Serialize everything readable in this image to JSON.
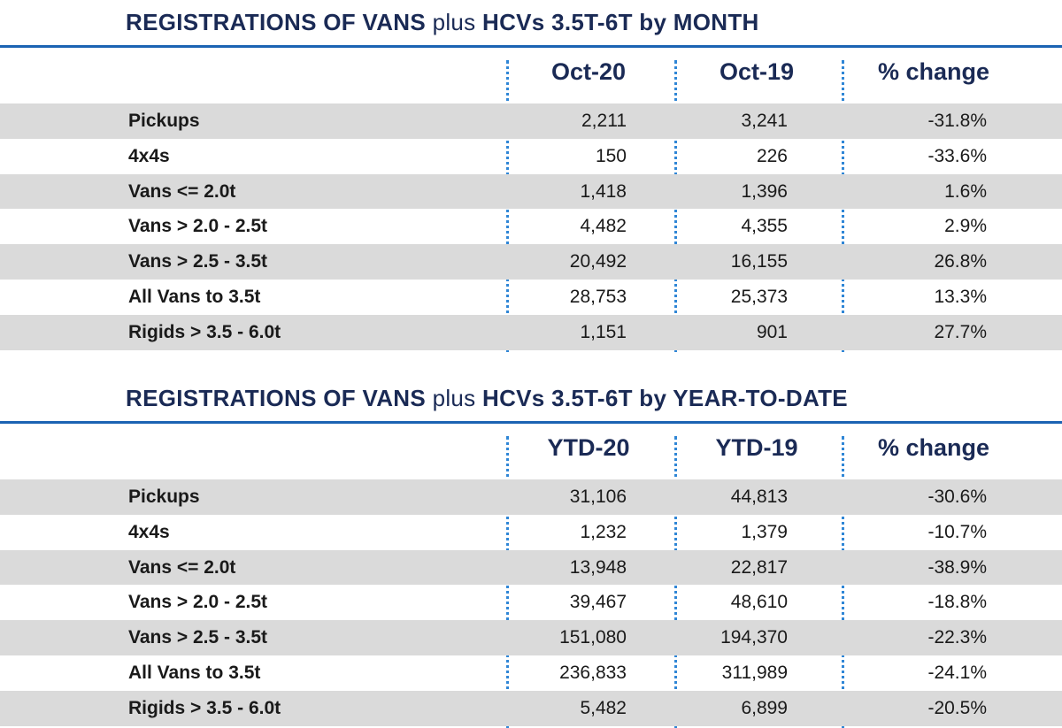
{
  "sections": [
    {
      "title_bold1": "REGISTRATIONS OF VANS",
      "title_plus": "plus",
      "title_bold2": "HCVs 3.5T-6T by MONTH",
      "columns": [
        "Oct-20",
        "Oct-19",
        "% change"
      ],
      "rows": [
        {
          "label": "Pickups",
          "c1": "2,211",
          "c2": "3,241",
          "c3": "-31.8%"
        },
        {
          "label": "4x4s",
          "c1": "150",
          "c2": "226",
          "c3": "-33.6%"
        },
        {
          "label": "Vans <= 2.0t",
          "c1": "1,418",
          "c2": "1,396",
          "c3": "1.6%"
        },
        {
          "label": "Vans > 2.0 - 2.5t",
          "c1": "4,482",
          "c2": "4,355",
          "c3": "2.9%"
        },
        {
          "label": "Vans > 2.5 - 3.5t",
          "c1": "20,492",
          "c2": "16,155",
          "c3": "26.8%"
        },
        {
          "label": "All Vans to 3.5t",
          "c1": "28,753",
          "c2": "25,373",
          "c3": "13.3%"
        },
        {
          "label": "Rigids > 3.5 - 6.0t",
          "c1": "1,151",
          "c2": "901",
          "c3": "27.7%"
        }
      ]
    },
    {
      "title_bold1": "REGISTRATIONS OF VANS",
      "title_plus": "plus",
      "title_bold2": "HCVs 3.5T-6T by YEAR-TO-DATE",
      "columns": [
        "YTD-20",
        "YTD-19",
        "% change"
      ],
      "rows": [
        {
          "label": "Pickups",
          "c1": "31,106",
          "c2": "44,813",
          "c3": "-30.6%"
        },
        {
          "label": "4x4s",
          "c1": "1,232",
          "c2": "1,379",
          "c3": "-10.7%"
        },
        {
          "label": "Vans <= 2.0t",
          "c1": "13,948",
          "c2": "22,817",
          "c3": "-38.9%"
        },
        {
          "label": "Vans > 2.0 - 2.5t",
          "c1": "39,467",
          "c2": "48,610",
          "c3": "-18.8%"
        },
        {
          "label": "Vans > 2.5 - 3.5t",
          "c1": "151,080",
          "c2": "194,370",
          "c3": "-22.3%"
        },
        {
          "label": "All Vans to 3.5t",
          "c1": "236,833",
          "c2": "311,989",
          "c3": "-24.1%"
        },
        {
          "label": "Rigids > 3.5 - 6.0t",
          "c1": "5,482",
          "c2": "6,899",
          "c3": "-20.5%"
        }
      ]
    }
  ],
  "colors": {
    "title": "#1a2a55",
    "rule": "#1b63b3",
    "separator": "#2f86d6",
    "row_shade": "#dadada"
  }
}
